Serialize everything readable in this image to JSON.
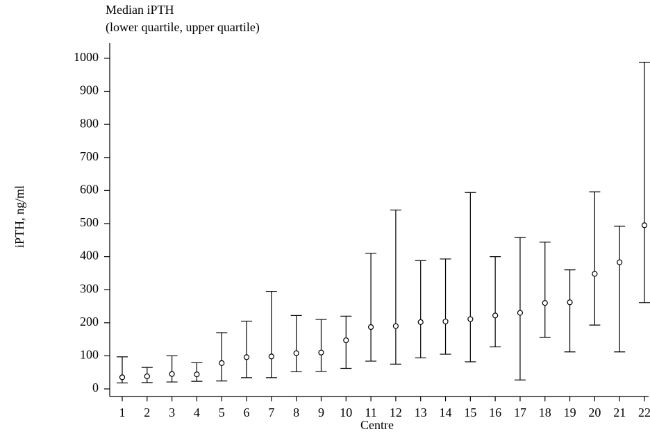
{
  "chart_data": {
    "type": "errorbar",
    "legend_lines": [
      "Median iPTH",
      "(lower quartile, upper quartile)"
    ],
    "x_label": "Centre",
    "y_label": "iPTH, ng/ml",
    "categories": [
      "1",
      "2",
      "3",
      "4",
      "5",
      "6",
      "7",
      "8",
      "9",
      "10",
      "11",
      "12",
      "13",
      "14",
      "15",
      "16",
      "17",
      "18",
      "19",
      "20",
      "21",
      "22"
    ],
    "series": [
      {
        "name": "Median",
        "values": [
          35,
          38,
          45,
          44,
          78,
          96,
          98,
          108,
          110,
          147,
          187,
          190,
          202,
          204,
          211,
          222,
          230,
          260,
          262,
          348,
          383,
          495
        ]
      },
      {
        "name": "Lower quartile",
        "values": [
          18,
          19,
          21,
          23,
          24,
          34,
          34,
          52,
          53,
          62,
          84,
          75,
          94,
          105,
          82,
          127,
          27,
          156,
          112,
          193,
          112,
          261
        ]
      },
      {
        "name": "Upper quartile",
        "values": [
          97,
          65,
          100,
          79,
          170,
          205,
          295,
          222,
          210,
          220,
          410,
          541,
          388,
          393,
          594,
          400,
          458,
          444,
          360,
          596,
          492,
          988
        ]
      }
    ],
    "color": "#000000",
    "ylim": [
      -23,
      1046
    ],
    "yticks": [
      0,
      100,
      200,
      300,
      400,
      500,
      600,
      700,
      800,
      900,
      1000
    ]
  }
}
